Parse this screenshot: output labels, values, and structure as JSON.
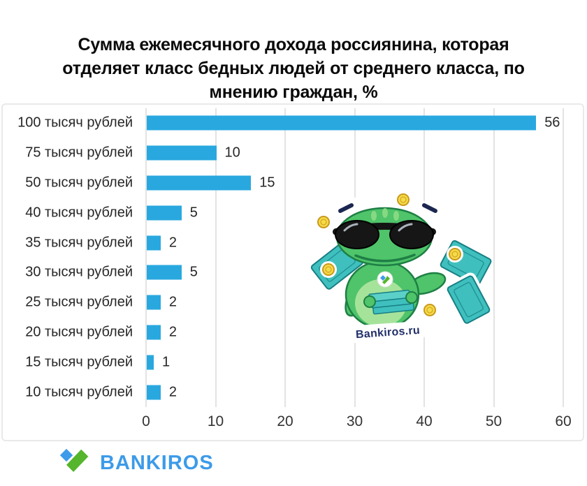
{
  "title": "Сумма ежемесячного дохода россиянина, которая отделяет класс бедных людей от среднего класса, по мнению граждан, %",
  "title_lines": [
    "Сумма ежемесячного дохода россиянина, которая",
    "отделяет класс бедных людей от среднего класса, по",
    "мнению граждан, %"
  ],
  "chart_data": {
    "type": "bar",
    "orientation": "horizontal",
    "title": "Сумма ежемесячного дохода россиянина, которая отделяет класс бедных людей от среднего класса, по мнению граждан, %",
    "categories": [
      "100 тысяч рублей",
      "75 тысяч рублей",
      "50 тысяч рублей",
      "40 тысяч рублей",
      "35 тысяч рублей",
      "30 тысяч рублей",
      "25 тысяч рублей",
      "20 тысяч рублей",
      "15 тысяч рублей",
      "10 тысяч рублей"
    ],
    "values": [
      56,
      10,
      15,
      5,
      2,
      5,
      2,
      2,
      1,
      2
    ],
    "xlabel": "",
    "ylabel": "",
    "xlim": [
      0,
      60
    ],
    "xticks": [
      0,
      10,
      20,
      30,
      40,
      50,
      60
    ],
    "grid": true,
    "value_labels": true,
    "legend": null,
    "bar_color": "#29a8df",
    "grid_color": "#e3e3e3"
  },
  "mascot": {
    "description": "green frog sticker wearing black sunglasses counting teal banknotes with gold coins",
    "caption": "Bankiros.ru"
  },
  "footer": {
    "brand": "BANKIROS",
    "brand_color": "#3d9be9",
    "logo_blue": "#3d9be9",
    "logo_green": "#55b52c"
  }
}
